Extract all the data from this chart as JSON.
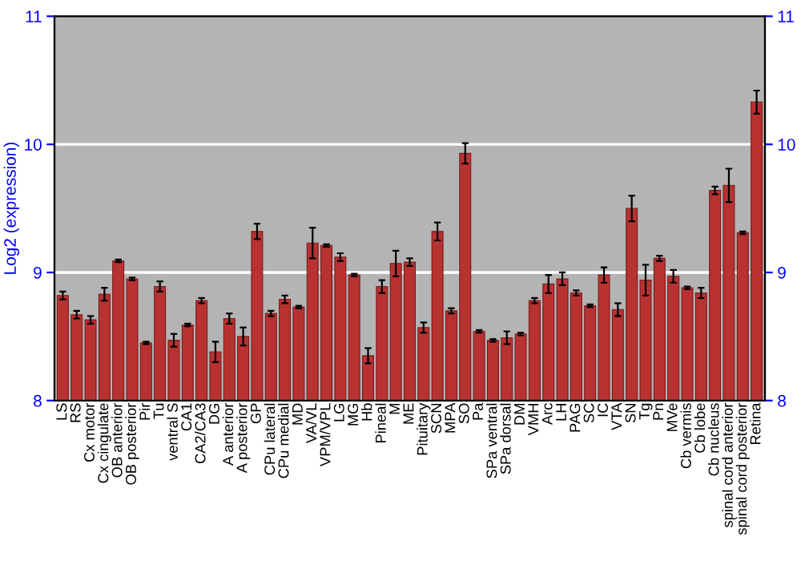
{
  "chart_data": {
    "type": "bar",
    "ylabel": "Log2 (expression)",
    "categories": [
      "LS",
      "RS",
      "Cx motor",
      "Cx cingulate",
      "OB anterior",
      "OB posterior",
      "Pir",
      "Tu",
      "ventral S",
      "CA1",
      "CA2/CA3",
      "DG",
      "A anterior",
      "A posterior",
      "GP",
      "CPu lateral",
      "CPu medial",
      "MD",
      "VA/VL",
      "VPM/VPL",
      "LG",
      "MG",
      "Hb",
      "Pineal",
      "M",
      "ME",
      "Pituitary",
      "SCN",
      "MPA",
      "SO",
      "Pa",
      "SPa ventral",
      "SPa dorsal",
      "DM",
      "VMH",
      "Arc",
      "LH",
      "PAG",
      "SC",
      "IC",
      "VTA",
      "SN",
      "Tg",
      "Pn",
      "MVe",
      "Cb vermis",
      "Cb lobe",
      "Cb nucleus",
      "spinal cord anterior",
      "spinal cord posterior",
      "Retina"
    ],
    "values": [
      8.82,
      8.67,
      8.63,
      8.83,
      9.09,
      8.95,
      8.45,
      8.89,
      8.47,
      8.59,
      8.78,
      8.38,
      8.64,
      8.5,
      9.32,
      8.68,
      8.79,
      8.73,
      9.23,
      9.21,
      9.12,
      8.98,
      8.35,
      8.89,
      9.07,
      9.08,
      8.57,
      9.32,
      8.7,
      9.93,
      8.54,
      8.47,
      8.49,
      8.52,
      8.78,
      8.91,
      8.95,
      8.84,
      8.74,
      8.98,
      8.71,
      9.5,
      8.94,
      9.11,
      8.97,
      8.88,
      8.84,
      9.64,
      9.68,
      9.31,
      10.33
    ],
    "errors": [
      0.03,
      0.03,
      0.03,
      0.05,
      0.01,
      0.01,
      0.01,
      0.04,
      0.05,
      0.01,
      0.02,
      0.08,
      0.04,
      0.07,
      0.06,
      0.02,
      0.03,
      0.01,
      0.12,
      0.01,
      0.03,
      0.01,
      0.06,
      0.05,
      0.1,
      0.03,
      0.04,
      0.07,
      0.02,
      0.08,
      0.01,
      0.01,
      0.05,
      0.01,
      0.02,
      0.07,
      0.05,
      0.02,
      0.01,
      0.06,
      0.05,
      0.1,
      0.12,
      0.02,
      0.05,
      0.01,
      0.04,
      0.03,
      0.13,
      0.01,
      0.09
    ],
    "color": "#b83232",
    "ylim": [
      8,
      11
    ],
    "yticks": [
      8,
      9,
      10,
      11
    ],
    "y2lim": [
      8,
      11
    ],
    "y2ticks": [
      8,
      9,
      10,
      11
    ],
    "grid": "y"
  }
}
